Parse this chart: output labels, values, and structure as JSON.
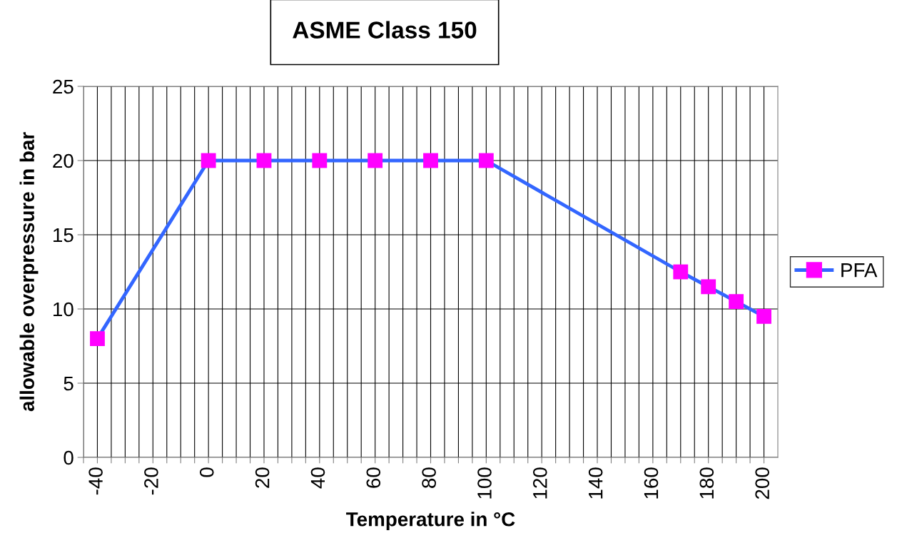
{
  "chart_data": {
    "type": "line",
    "title": "ASME Class 150",
    "xlabel": "Temperature in °C",
    "ylabel": "allowable overpressure in bar",
    "x": [
      -40,
      0,
      20,
      40,
      60,
      80,
      100,
      170,
      180,
      190,
      200
    ],
    "series": [
      {
        "name": "PFA",
        "color": "#3366ff",
        "colors": [
          "#ff00ff",
          "#ff00ff",
          "#ff00ff",
          "#ff00ff",
          "#ff00ff",
          "#ff00ff",
          "#ff00ff",
          "#ff00ff",
          "#ff00ff",
          "#ff00ff",
          "#ff00ff"
        ],
        "values": [
          8,
          20,
          20,
          20,
          20,
          20,
          20,
          12.5,
          11.5,
          10.5,
          9.5
        ]
      }
    ],
    "xlim": [
      -45,
      205
    ],
    "ylim": [
      0,
      25
    ],
    "xticks": [
      {
        "value": -45,
        "label": null
      },
      -40,
      {
        "value": -35,
        "label": null
      },
      {
        "value": -30,
        "label": null
      },
      {
        "value": -25,
        "label": null
      },
      -20,
      {
        "value": -15,
        "label": null
      },
      {
        "value": -10,
        "label": null
      },
      {
        "value": -5,
        "label": null
      },
      0,
      {
        "value": 5,
        "label": null
      },
      {
        "value": 10,
        "label": null
      },
      {
        "value": 15,
        "label": null
      },
      20,
      {
        "value": 25,
        "label": null
      },
      {
        "value": 30,
        "label": null
      },
      {
        "value": 35,
        "label": null
      },
      40,
      {
        "value": 45,
        "label": null
      },
      {
        "value": 50,
        "label": null
      },
      {
        "value": 55,
        "label": null
      },
      60,
      {
        "value": 65,
        "label": null
      },
      {
        "value": 70,
        "label": null
      },
      {
        "value": 75,
        "label": null
      },
      80,
      {
        "value": 85,
        "label": null
      },
      {
        "value": 90,
        "label": null
      },
      {
        "value": 95,
        "label": null
      },
      100,
      {
        "value": 105,
        "label": null
      },
      {
        "value": 110,
        "label": null
      },
      {
        "value": 115,
        "label": null
      },
      120,
      {
        "value": 125,
        "label": null
      },
      {
        "value": 130,
        "label": null
      },
      {
        "value": 135,
        "label": null
      },
      140,
      {
        "value": 145,
        "label": null
      },
      {
        "value": 150,
        "label": null
      },
      {
        "value": 155,
        "label": null
      },
      160,
      {
        "value": 165,
        "label": null
      },
      {
        "value": 170,
        "label": null
      },
      {
        "value": 175,
        "label": null
      },
      180,
      {
        "value": 185,
        "label": null
      },
      {
        "value": 190,
        "label": null
      },
      {
        "value": 195,
        "label": null
      },
      200
    ],
    "yticks": [
      0,
      5,
      10,
      15,
      20,
      25
    ],
    "grid": true,
    "legend": "right",
    "marker": "square",
    "line_style": "solid"
  }
}
